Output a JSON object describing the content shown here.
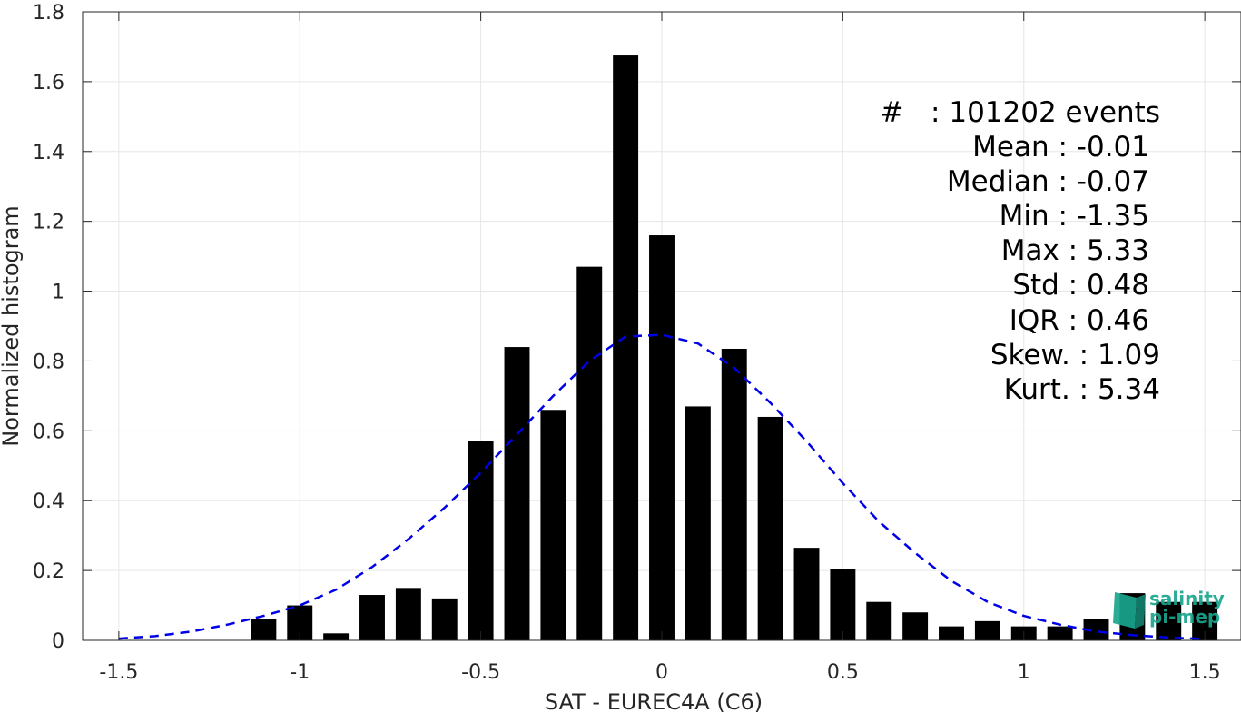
{
  "chart_data": {
    "type": "bar",
    "xlabel": "SAT - EUREC4A (C6)",
    "ylabel": "Normalized histogram",
    "xlim": [
      -1.6,
      1.6
    ],
    "ylim": [
      0,
      1.8
    ],
    "xticks": [
      -1.5,
      -1,
      -0.5,
      0,
      0.5,
      1,
      1.5
    ],
    "xtick_labels": [
      "-1.5",
      "-1",
      "-0.5",
      "0",
      "0.5",
      "1",
      "1.5"
    ],
    "yticks": [
      0,
      0.2,
      0.4,
      0.6,
      0.8,
      1,
      1.2,
      1.4,
      1.6,
      1.8
    ],
    "ytick_labels": [
      "0",
      "0.2",
      "0.4",
      "0.6",
      "0.8",
      "1",
      "1.2",
      "1.4",
      "1.6",
      "1.8"
    ],
    "grid": true,
    "bar_width": 0.07,
    "bars": [
      {
        "x": -1.1,
        "y": 0.06
      },
      {
        "x": -1.0,
        "y": 0.1
      },
      {
        "x": -0.9,
        "y": 0.02
      },
      {
        "x": -0.8,
        "y": 0.13
      },
      {
        "x": -0.7,
        "y": 0.15
      },
      {
        "x": -0.6,
        "y": 0.12
      },
      {
        "x": -0.5,
        "y": 0.57
      },
      {
        "x": -0.4,
        "y": 0.84
      },
      {
        "x": -0.3,
        "y": 0.66
      },
      {
        "x": -0.2,
        "y": 1.07
      },
      {
        "x": -0.1,
        "y": 1.675
      },
      {
        "x": 0.0,
        "y": 1.16
      },
      {
        "x": 0.1,
        "y": 0.67
      },
      {
        "x": 0.2,
        "y": 0.835
      },
      {
        "x": 0.3,
        "y": 0.64
      },
      {
        "x": 0.4,
        "y": 0.265
      },
      {
        "x": 0.5,
        "y": 0.205
      },
      {
        "x": 0.6,
        "y": 0.11
      },
      {
        "x": 0.7,
        "y": 0.08
      },
      {
        "x": 0.8,
        "y": 0.04
      },
      {
        "x": 0.9,
        "y": 0.055
      },
      {
        "x": 1.0,
        "y": 0.04
      },
      {
        "x": 1.1,
        "y": 0.04
      },
      {
        "x": 1.2,
        "y": 0.06
      },
      {
        "x": 1.3,
        "y": 0.135
      },
      {
        "x": 1.4,
        "y": 0.11
      },
      {
        "x": 1.5,
        "y": 0.11
      }
    ],
    "fit_curve": {
      "style": "dashed",
      "color": "#0000e6",
      "x": [
        -1.5,
        -1.4,
        -1.3,
        -1.2,
        -1.1,
        -1.0,
        -0.9,
        -0.8,
        -0.7,
        -0.6,
        -0.5,
        -0.4,
        -0.3,
        -0.2,
        -0.1,
        0.0,
        0.1,
        0.2,
        0.3,
        0.4,
        0.5,
        0.6,
        0.7,
        0.8,
        0.9,
        1.0,
        1.1,
        1.2,
        1.3,
        1.4,
        1.5
      ],
      "y": [
        0.005,
        0.012,
        0.025,
        0.045,
        0.07,
        0.1,
        0.145,
        0.21,
        0.29,
        0.38,
        0.48,
        0.59,
        0.7,
        0.8,
        0.87,
        0.875,
        0.85,
        0.78,
        0.68,
        0.57,
        0.45,
        0.34,
        0.25,
        0.17,
        0.11,
        0.07,
        0.045,
        0.025,
        0.015,
        0.008,
        0.004
      ]
    },
    "colors": {
      "bars": "#000000",
      "curve": "#0000e6",
      "grid": "#e6e6e6",
      "axis": "#262626"
    }
  },
  "stats": {
    "count_label": "#   : 101202 events",
    "mean": "Mean : -0.01",
    "median": "Median : -0.07",
    "min": "Min : -1.35",
    "max": "Max : 5.33",
    "std": "Std : 0.48",
    "iqr": "IQR : 0.46",
    "skew": "Skew. : 1.09",
    "kurt": "Kurt. : 5.34"
  },
  "logo": {
    "line1": "salinity",
    "line2": "pi-mep",
    "color": "#1aa58e"
  }
}
